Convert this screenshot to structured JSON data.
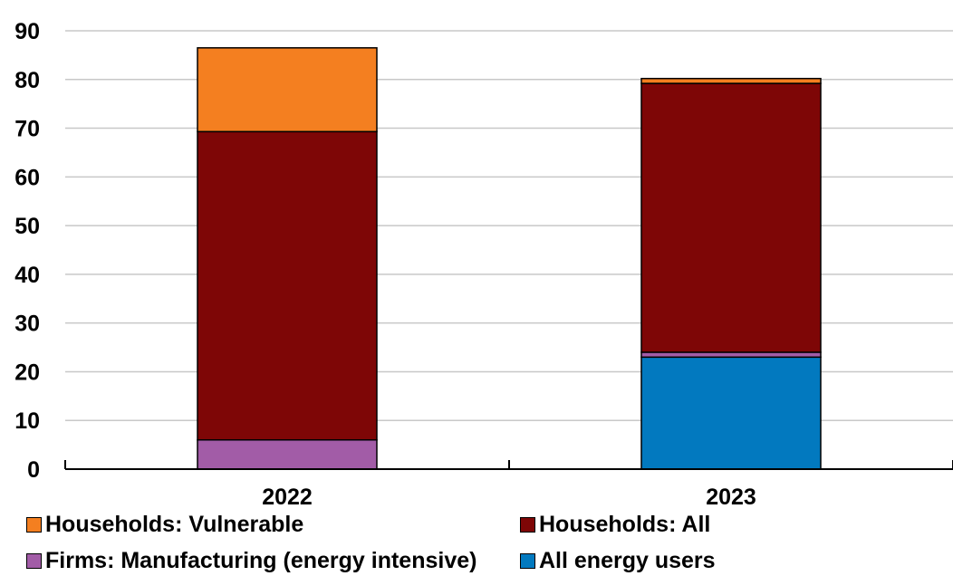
{
  "chart_data": {
    "type": "bar",
    "stacked": true,
    "categories": [
      "2022",
      "2023"
    ],
    "series": [
      {
        "name": "All energy users",
        "values": [
          0,
          23
        ],
        "color": "#0279bf"
      },
      {
        "name": "Firms: Manufacturing (energy intensive)",
        "values": [
          6,
          1
        ],
        "color": "#a25ca7"
      },
      {
        "name": "Households: All",
        "values": [
          63.3,
          55.2
        ],
        "color": "#7e0606"
      },
      {
        "name": "Households: Vulnerable",
        "values": [
          17.2,
          1
        ],
        "color": "#f47f20"
      }
    ],
    "ylim": [
      0,
      90
    ],
    "yticks": [
      0,
      10,
      20,
      30,
      40,
      50,
      60,
      70,
      80,
      90
    ],
    "grid": true,
    "legend_position": "bottom",
    "legend_order": [
      "Households: Vulnerable",
      "Households: All",
      "Firms: Manufacturing (energy intensive)",
      "All energy users"
    ],
    "title": "",
    "xlabel": "",
    "ylabel": ""
  }
}
